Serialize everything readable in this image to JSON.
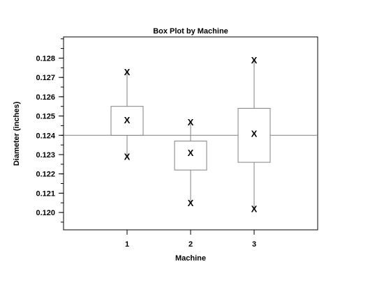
{
  "chart_data": {
    "type": "box",
    "title": "Box Plot by Machine",
    "xlabel": "Machine",
    "ylabel": "Diameter (inches)",
    "categories": [
      "1",
      "2",
      "3"
    ],
    "xlim": [
      0,
      4
    ],
    "ylim": [
      0.1191,
      0.1291
    ],
    "yticks": [
      "0.120",
      "0.121",
      "0.122",
      "0.123",
      "0.124",
      "0.125",
      "0.126",
      "0.127",
      "0.128"
    ],
    "reference_line": 0.124,
    "point_marker": "X",
    "boxes": [
      {
        "category": "1",
        "min": 0.1229,
        "q1": 0.124,
        "median": 0.1248,
        "q3": 0.1255,
        "max": 0.1273
      },
      {
        "category": "2",
        "min": 0.1205,
        "q1": 0.1222,
        "median": 0.1231,
        "q3": 0.1237,
        "max": 0.1247
      },
      {
        "category": "3",
        "min": 0.1202,
        "q1": 0.1226,
        "median": 0.1241,
        "q3": 0.1254,
        "max": 0.1279
      }
    ],
    "grid": false
  }
}
